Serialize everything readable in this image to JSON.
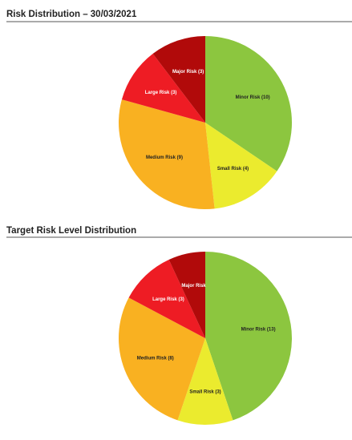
{
  "chart_data": [
    {
      "type": "pie",
      "title": "Risk Distribution – 30/03/2021",
      "categories": [
        "Minor Risk (10)",
        "Small Risk (4)",
        "Medium Risk (9)",
        "Large Risk (3)",
        "Major Risk (3)"
      ],
      "values": [
        10,
        4,
        9,
        3,
        3
      ],
      "colors": [
        "#8cc63f",
        "#ebeb2e",
        "#f9b121",
        "#ee1c24",
        "#b10a0a"
      ]
    },
    {
      "type": "pie",
      "title": "Target Risk Level Distribution",
      "categories": [
        "Minor Risk (13)",
        "Small Risk (3)",
        "Medium Risk (8)",
        "Large Risk (3)",
        "Major Risk"
      ],
      "values": [
        13,
        3,
        8,
        3,
        2
      ],
      "colors": [
        "#8cc63f",
        "#ebeb2e",
        "#f9b121",
        "#ee1c24",
        "#b10a0a"
      ]
    }
  ]
}
